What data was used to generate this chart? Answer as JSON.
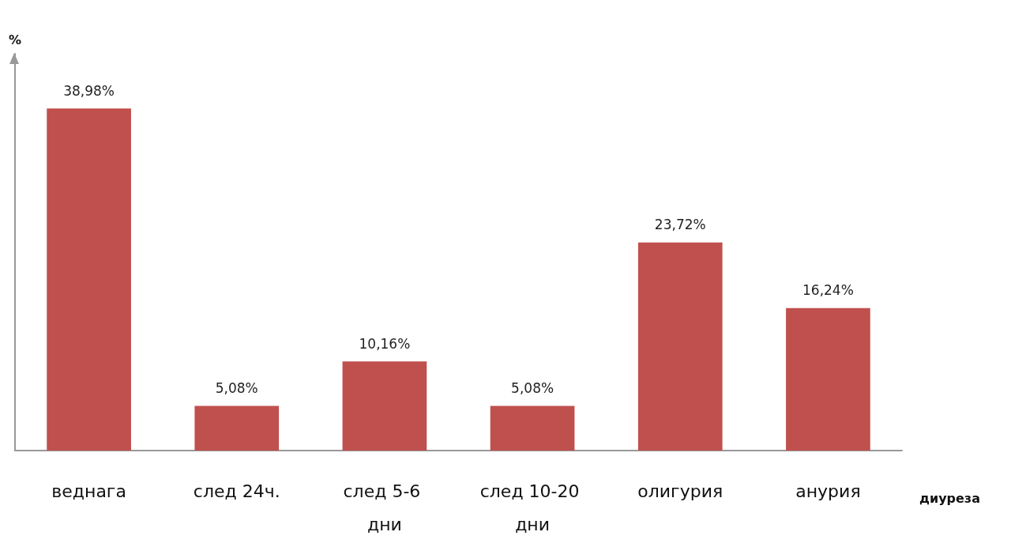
{
  "chart_data": {
    "type": "bar",
    "xlabel": "диуреза",
    "ylabel": "%",
    "categories": [
      "веднага",
      "след 24ч.",
      "след 5-6 дни",
      "след 10-20 дни",
      "олигурия",
      "анурия"
    ],
    "values": [
      38.98,
      5.08,
      10.16,
      5.08,
      23.72,
      16.24
    ],
    "value_labels": [
      "38,98%",
      "5,08%",
      "10,16%",
      "5,08%",
      "23,72%",
      "16,24%"
    ],
    "color": "#c0504d",
    "grid": false
  }
}
